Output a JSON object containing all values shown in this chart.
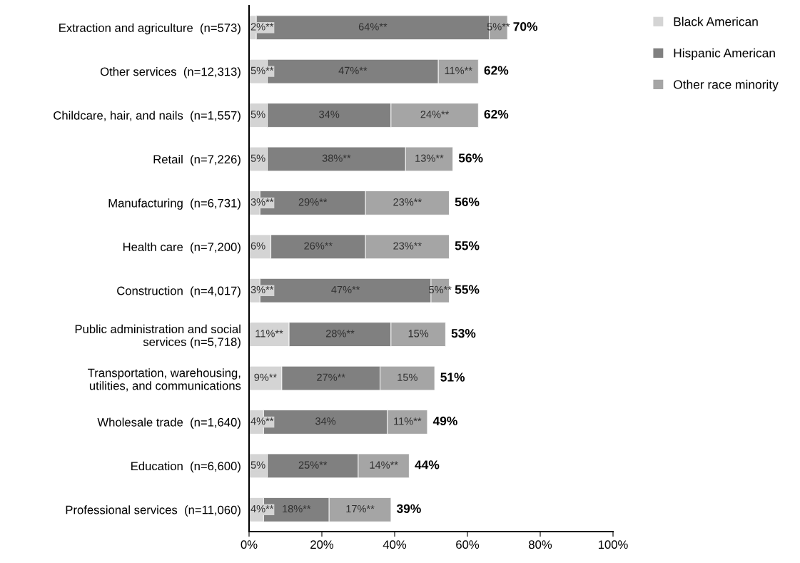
{
  "chart_data": {
    "type": "bar",
    "orientation": "horizontal",
    "stacked": true,
    "categories": [
      "Extraction and agriculture  (n=573)",
      "Other services  (n=12,313)",
      "Childcare, hair, and nails  (n=1,557)",
      "Retail  (n=7,226)",
      "Manufacturing  (n=6,731)",
      "Health care  (n=7,200)",
      "Construction  (n=4,017)",
      "Public administration and social\nservices (n=5,718)",
      "Transportation, warehousing,\nutilities, and communications",
      "Wholesale trade  (n=1,640)",
      "Education  (n=6,600)",
      "Professional services  (n=11,060)"
    ],
    "series": [
      {
        "name": "Black American",
        "color": "#d4d4d4",
        "values": [
          2,
          5,
          5,
          5,
          3,
          6,
          3,
          11,
          9,
          4,
          5,
          4
        ],
        "value_labels": [
          "2%**",
          "5%**",
          "5%",
          "5%",
          "3%**",
          "6%",
          "3%**",
          "11%**",
          "9%**",
          "4%**",
          "5%",
          "4%**"
        ]
      },
      {
        "name": "Hispanic American",
        "color": "#808080",
        "values": [
          64,
          47,
          34,
          38,
          29,
          26,
          47,
          28,
          27,
          34,
          25,
          18
        ],
        "value_labels": [
          "64%**",
          "47%**",
          "34%",
          "38%**",
          "29%**",
          "26%**",
          "47%**",
          "28%**",
          "27%**",
          "34%",
          "25%**",
          "18%**"
        ]
      },
      {
        "name": "Other race minority",
        "color": "#a5a5a5",
        "values": [
          5,
          11,
          24,
          13,
          23,
          23,
          5,
          15,
          15,
          11,
          14,
          17
        ],
        "value_labels": [
          "5%**",
          "11%**",
          "24%**",
          "13%**",
          "23%**",
          "23%**",
          "5%**",
          "15%",
          "15%",
          "11%**",
          "14%**",
          "17%**"
        ]
      }
    ],
    "totals": [
      "70%",
      "62%",
      "62%",
      "56%",
      "56%",
      "55%",
      "55%",
      "53%",
      "51%",
      "49%",
      "44%",
      "39%"
    ],
    "xlim": [
      0,
      100
    ],
    "xticks": [
      {
        "value": 0,
        "label": "0%"
      },
      {
        "value": 20,
        "label": "20%"
      },
      {
        "value": 40,
        "label": "40%"
      },
      {
        "value": 60,
        "label": "60%"
      },
      {
        "value": 80,
        "label": "80%"
      },
      {
        "value": 100,
        "label": "100%"
      }
    ],
    "grid": false,
    "legend": "right"
  }
}
